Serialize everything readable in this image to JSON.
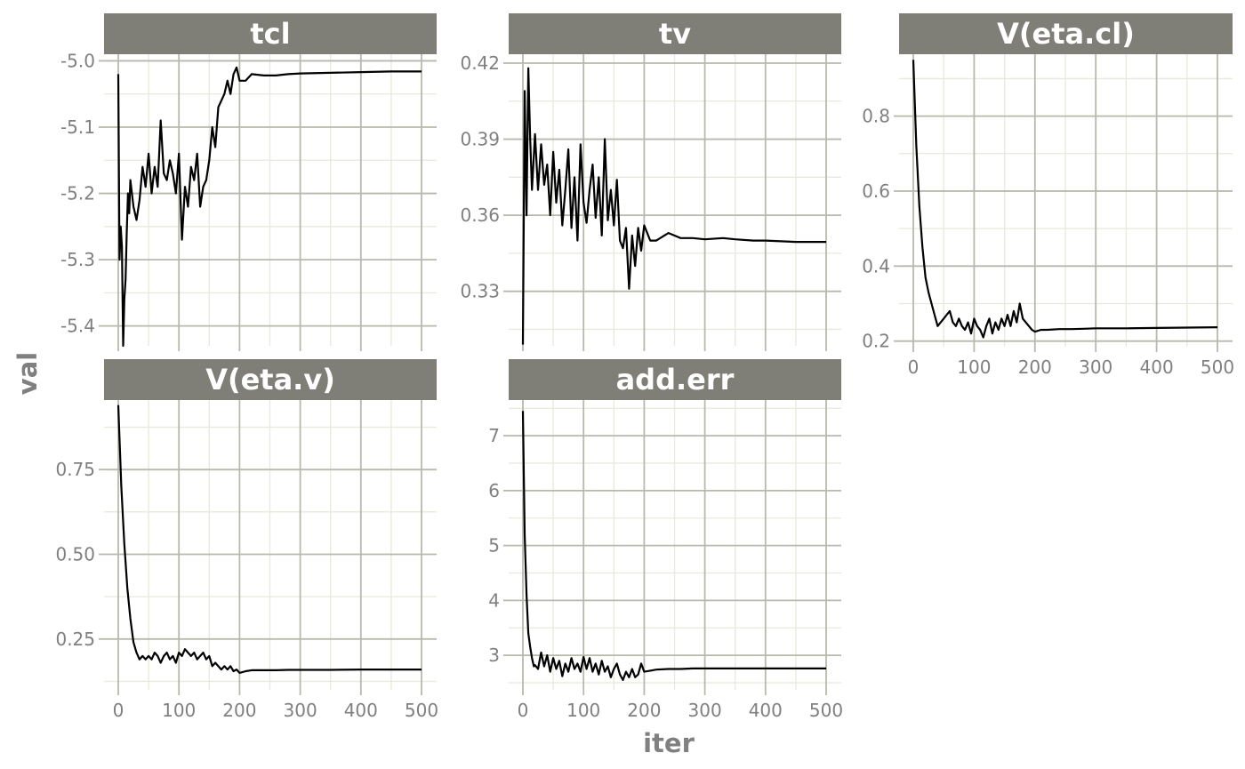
{
  "colors": {
    "strip_fill": "#7f7f77",
    "strip_text": "#ffffff",
    "grid_major": "#b8b8ac",
    "grid_minor": "#e8e8dc",
    "line": "#000000",
    "tick_text": "#808080",
    "axis_title": "#808080"
  },
  "chart_data": {
    "type": "line",
    "facet_wrap": true,
    "xlabel": "iter",
    "ylabel": "val",
    "grid": true,
    "panels": [
      {
        "name": "tcl",
        "xlim": [
          0,
          500
        ],
        "ylim": [
          -5.43,
          -4.99
        ],
        "x_ticks": [
          0,
          100,
          200,
          300,
          400,
          500
        ],
        "y_ticks": [
          -5.4,
          -5.3,
          -5.2,
          -5.1,
          -5.0
        ],
        "y_tick_labels": [
          "-5.4",
          "-5.3",
          "-5.2",
          "-5.1",
          "-5.0"
        ],
        "x": [
          0,
          2,
          4,
          6,
          8,
          10,
          12,
          14,
          16,
          18,
          20,
          25,
          30,
          35,
          40,
          45,
          50,
          55,
          60,
          65,
          70,
          75,
          80,
          85,
          90,
          95,
          100,
          105,
          110,
          115,
          120,
          125,
          130,
          135,
          140,
          145,
          150,
          155,
          160,
          165,
          170,
          175,
          180,
          185,
          190,
          195,
          200,
          210,
          220,
          240,
          260,
          280,
          300,
          350,
          400,
          450,
          500
        ],
        "values": [
          -5.02,
          -5.3,
          -5.25,
          -5.28,
          -5.43,
          -5.36,
          -5.33,
          -5.26,
          -5.2,
          -5.23,
          -5.18,
          -5.22,
          -5.24,
          -5.21,
          -5.16,
          -5.19,
          -5.14,
          -5.2,
          -5.16,
          -5.19,
          -5.09,
          -5.17,
          -5.18,
          -5.15,
          -5.17,
          -5.2,
          -5.14,
          -5.27,
          -5.19,
          -5.22,
          -5.16,
          -5.18,
          -5.14,
          -5.22,
          -5.19,
          -5.18,
          -5.15,
          -5.1,
          -5.13,
          -5.07,
          -5.06,
          -5.05,
          -5.03,
          -5.05,
          -5.02,
          -5.01,
          -5.03,
          -5.03,
          -5.02,
          -5.022,
          -5.022,
          -5.02,
          -5.019,
          -5.018,
          -5.017,
          -5.016,
          -5.016
        ]
      },
      {
        "name": "tv",
        "xlim": [
          0,
          500
        ],
        "ylim": [
          0.3085,
          0.4235
        ],
        "x_ticks": [
          0,
          100,
          200,
          300,
          400,
          500
        ],
        "y_ticks": [
          0.33,
          0.36,
          0.39,
          0.42
        ],
        "y_tick_labels": [
          "0.33",
          "0.36",
          "0.39",
          "0.42"
        ],
        "x": [
          0,
          3,
          6,
          9,
          12,
          15,
          20,
          25,
          30,
          35,
          40,
          45,
          50,
          55,
          60,
          65,
          70,
          75,
          80,
          85,
          90,
          95,
          100,
          105,
          110,
          115,
          120,
          125,
          130,
          135,
          140,
          145,
          150,
          155,
          160,
          165,
          170,
          175,
          180,
          185,
          190,
          195,
          200,
          210,
          220,
          240,
          260,
          280,
          300,
          330,
          350,
          380,
          400,
          450,
          500
        ],
        "values": [
          0.309,
          0.409,
          0.36,
          0.418,
          0.39,
          0.37,
          0.392,
          0.37,
          0.388,
          0.372,
          0.38,
          0.36,
          0.385,
          0.365,
          0.378,
          0.356,
          0.37,
          0.386,
          0.355,
          0.375,
          0.35,
          0.388,
          0.365,
          0.357,
          0.37,
          0.38,
          0.359,
          0.375,
          0.352,
          0.39,
          0.358,
          0.37,
          0.356,
          0.374,
          0.35,
          0.347,
          0.355,
          0.331,
          0.352,
          0.34,
          0.355,
          0.346,
          0.356,
          0.35,
          0.35,
          0.353,
          0.351,
          0.351,
          0.3505,
          0.351,
          0.3505,
          0.35,
          0.35,
          0.3495,
          0.3495
        ]
      },
      {
        "name": "V(eta.cl)",
        "xlim": [
          0,
          500
        ],
        "ylim": [
          0.185,
          0.965
        ],
        "x_ticks": [
          0,
          100,
          200,
          300,
          400,
          500
        ],
        "y_ticks": [
          0.2,
          0.4,
          0.6,
          0.8
        ],
        "y_tick_labels": [
          "0.2",
          "0.4",
          "0.6",
          "0.8"
        ],
        "x": [
          0,
          5,
          10,
          15,
          20,
          25,
          30,
          35,
          40,
          45,
          50,
          55,
          60,
          65,
          70,
          75,
          80,
          85,
          90,
          95,
          100,
          105,
          110,
          115,
          120,
          125,
          130,
          135,
          140,
          145,
          150,
          155,
          160,
          165,
          170,
          175,
          180,
          185,
          190,
          195,
          200,
          210,
          220,
          240,
          260,
          280,
          300,
          350,
          400,
          450,
          500
        ],
        "values": [
          0.95,
          0.72,
          0.56,
          0.45,
          0.37,
          0.33,
          0.3,
          0.27,
          0.24,
          0.25,
          0.26,
          0.27,
          0.28,
          0.25,
          0.24,
          0.26,
          0.24,
          0.23,
          0.25,
          0.22,
          0.26,
          0.24,
          0.23,
          0.21,
          0.24,
          0.26,
          0.22,
          0.25,
          0.23,
          0.26,
          0.24,
          0.27,
          0.24,
          0.28,
          0.25,
          0.3,
          0.26,
          0.25,
          0.24,
          0.23,
          0.225,
          0.23,
          0.23,
          0.232,
          0.232,
          0.233,
          0.234,
          0.234,
          0.235,
          0.236,
          0.237
        ]
      },
      {
        "name": "V(eta.v)",
        "xlim": [
          0,
          500
        ],
        "ylim": [
          0.1,
          0.955
        ],
        "x_ticks": [
          0,
          100,
          200,
          300,
          400,
          500
        ],
        "y_ticks": [
          0.25,
          0.5,
          0.75
        ],
        "y_tick_labels": [
          "0.25",
          "0.50",
          "0.75"
        ],
        "x": [
          0,
          5,
          10,
          15,
          20,
          25,
          30,
          35,
          40,
          45,
          50,
          55,
          60,
          65,
          70,
          75,
          80,
          85,
          90,
          95,
          100,
          105,
          110,
          115,
          120,
          125,
          130,
          135,
          140,
          145,
          150,
          155,
          160,
          165,
          170,
          175,
          180,
          185,
          190,
          195,
          200,
          210,
          220,
          240,
          260,
          280,
          300,
          350,
          400,
          450,
          500
        ],
        "values": [
          0.94,
          0.7,
          0.53,
          0.4,
          0.31,
          0.24,
          0.21,
          0.19,
          0.2,
          0.19,
          0.2,
          0.19,
          0.21,
          0.2,
          0.18,
          0.2,
          0.21,
          0.19,
          0.2,
          0.18,
          0.21,
          0.2,
          0.22,
          0.21,
          0.2,
          0.21,
          0.19,
          0.2,
          0.21,
          0.19,
          0.2,
          0.17,
          0.18,
          0.17,
          0.16,
          0.17,
          0.16,
          0.17,
          0.155,
          0.16,
          0.15,
          0.155,
          0.158,
          0.158,
          0.158,
          0.159,
          0.159,
          0.159,
          0.16,
          0.16,
          0.16
        ]
      },
      {
        "name": "add.err",
        "xlim": [
          0,
          500
        ],
        "ylim": [
          2.37,
          7.65
        ],
        "x_ticks": [
          0,
          100,
          200,
          300,
          400,
          500
        ],
        "y_ticks": [
          3,
          4,
          5,
          6,
          7
        ],
        "y_tick_labels": [
          "3",
          "4",
          "5",
          "6",
          "7"
        ],
        "x": [
          0,
          3,
          6,
          9,
          12,
          15,
          18,
          20,
          25,
          30,
          35,
          40,
          45,
          50,
          55,
          60,
          65,
          70,
          75,
          80,
          85,
          90,
          95,
          100,
          105,
          110,
          115,
          120,
          125,
          130,
          135,
          140,
          145,
          150,
          155,
          160,
          165,
          170,
          175,
          180,
          185,
          190,
          195,
          200,
          210,
          220,
          240,
          260,
          280,
          300,
          350,
          400,
          450,
          500
        ],
        "values": [
          7.45,
          5.2,
          4.1,
          3.4,
          3.15,
          2.95,
          2.8,
          2.82,
          2.75,
          3.05,
          2.8,
          3.0,
          2.7,
          2.95,
          2.75,
          2.9,
          2.62,
          2.85,
          2.7,
          2.95,
          2.75,
          2.85,
          2.7,
          2.97,
          2.75,
          2.95,
          2.7,
          2.85,
          2.65,
          2.9,
          2.7,
          2.8,
          2.6,
          2.75,
          2.85,
          2.65,
          2.55,
          2.7,
          2.6,
          2.75,
          2.6,
          2.65,
          2.85,
          2.7,
          2.72,
          2.74,
          2.75,
          2.75,
          2.76,
          2.76,
          2.76,
          2.76,
          2.76,
          2.76
        ]
      }
    ]
  }
}
